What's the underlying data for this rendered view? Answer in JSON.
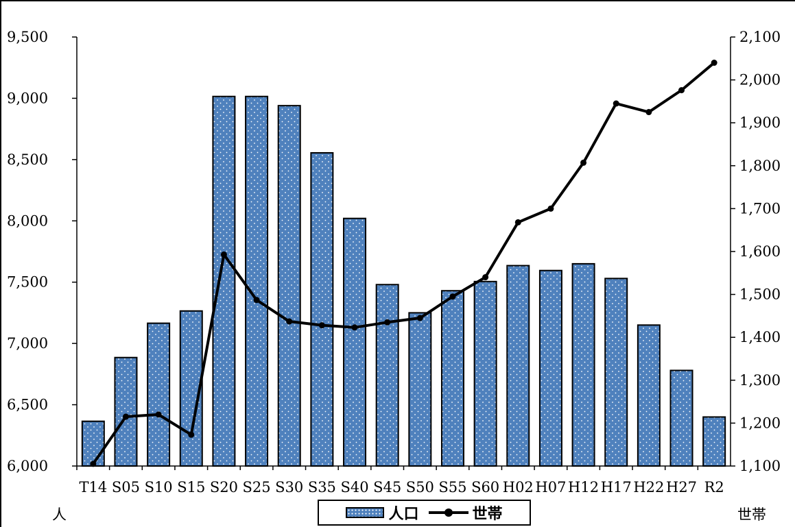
{
  "chart_data": {
    "type": "bar+line",
    "categories": [
      "T14",
      "S05",
      "S10",
      "S15",
      "S20",
      "S25",
      "S30",
      "S35",
      "S40",
      "S45",
      "S50",
      "S55",
      "S60",
      "H02",
      "H07",
      "H12",
      "H17",
      "H22",
      "H27",
      "R2"
    ],
    "series": [
      {
        "name": "人口",
        "type": "bar",
        "axis": "left",
        "values": [
          6365,
          6885,
          7165,
          7265,
          9015,
          9015,
          8940,
          8555,
          8020,
          7480,
          7250,
          7430,
          7505,
          7635,
          7595,
          7650,
          7530,
          7150,
          6780,
          6400
        ]
      },
      {
        "name": "世帯",
        "type": "line",
        "axis": "right",
        "values": [
          1105,
          1215,
          1220,
          1173,
          1593,
          1487,
          1437,
          1428,
          1423,
          1435,
          1445,
          1495,
          1540,
          1668,
          1700,
          1807,
          1945,
          1925,
          1976,
          2040
        ]
      }
    ],
    "y_left": {
      "label": "人",
      "ylim": [
        6000,
        9500
      ],
      "ticks": [
        6000,
        6500,
        7000,
        7500,
        8000,
        8500,
        9000,
        9500
      ],
      "tick_labels": [
        "6,000",
        "6,500",
        "7,000",
        "7,500",
        "8,000",
        "8,500",
        "9,000",
        "9,500"
      ]
    },
    "y_right": {
      "label": "世帯",
      "ylim": [
        1100,
        2100
      ],
      "ticks": [
        1100,
        1200,
        1300,
        1400,
        1500,
        1600,
        1700,
        1800,
        1900,
        2000,
        2100
      ],
      "tick_labels": [
        "1,100",
        "1,200",
        "1,300",
        "1,400",
        "1,500",
        "1,600",
        "1,700",
        "1,800",
        "1,900",
        "2,000",
        "2,100"
      ]
    },
    "grid": false,
    "legend_position": "bottom-center",
    "colors": {
      "bar_fill": "#4f81bd",
      "bar_dots": "#ffffff",
      "line": "#000000"
    }
  }
}
